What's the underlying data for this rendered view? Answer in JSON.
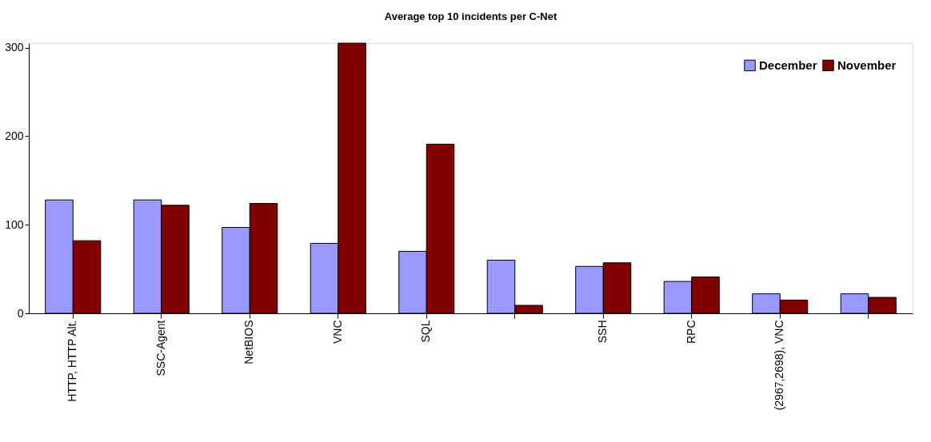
{
  "chart_data": {
    "type": "bar",
    "title": "Average top 10 incidents per C-Net",
    "categories": [
      "HTTP, HTTP Alt.",
      "SSC-Agent",
      "NetBIOS",
      "VNC",
      "SQL",
      null,
      "SSH",
      "RPC",
      "(2967,2698), VNC",
      null
    ],
    "series": [
      {
        "name": "December",
        "color": "#9999ff",
        "values": [
          128,
          128,
          97,
          79,
          70,
          60,
          53,
          36,
          22,
          22
        ]
      },
      {
        "name": "November",
        "color": "#800000",
        "values": [
          82,
          122,
          124,
          305,
          191,
          9,
          57,
          41,
          15,
          18
        ]
      }
    ],
    "ylim": [
      0,
      305
    ],
    "yticks": [
      0,
      100,
      200,
      300
    ],
    "grid": false,
    "legend": "top right"
  }
}
